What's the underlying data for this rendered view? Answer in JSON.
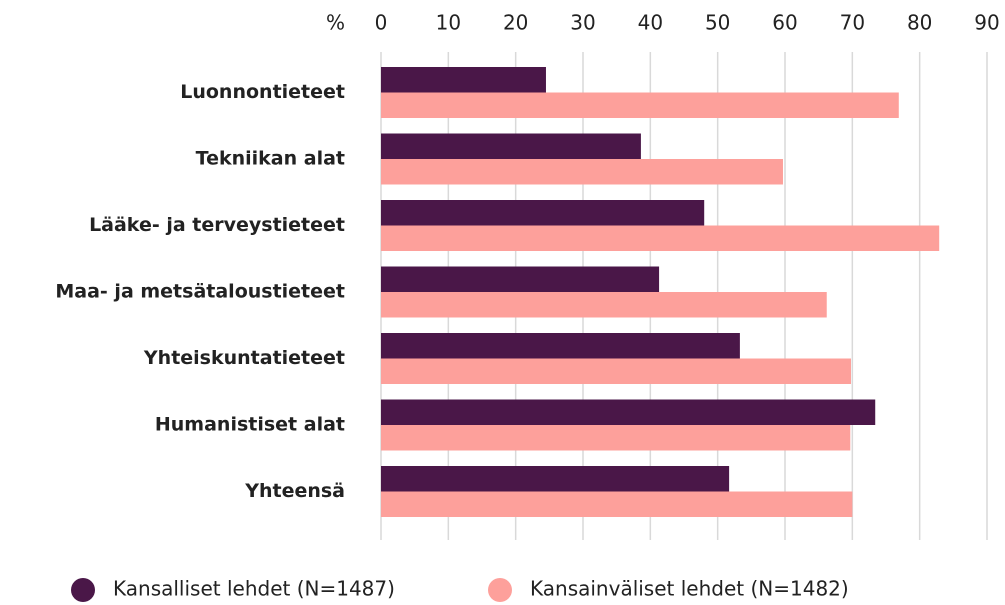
{
  "chart_data": {
    "type": "barh",
    "xlabel": "%",
    "categories": [
      "Luonnontieteet",
      "Tekniikan alat",
      "Lääke- ja terveystieteet",
      "Maa- ja metsätaloustieteet",
      "Yhteiskuntatieteet",
      "Humanistiset alat",
      "Yhteensä"
    ],
    "series": [
      {
        "name": "Kansalliset lehdet (N=1487)",
        "color": "#4a1748",
        "values": [
          24.5,
          38.6,
          48.0,
          41.3,
          53.3,
          73.4,
          51.7
        ]
      },
      {
        "name": "Kansainväliset lehdet (N=1482)",
        "color": "#fda09b",
        "values": [
          76.9,
          59.7,
          82.9,
          66.2,
          69.8,
          69.7,
          70.0
        ]
      }
    ],
    "xlim": [
      0,
      90
    ],
    "xticks": [
      0,
      10,
      20,
      30,
      40,
      50,
      60,
      70,
      80,
      90
    ],
    "grid": true,
    "legend": "bottom"
  }
}
